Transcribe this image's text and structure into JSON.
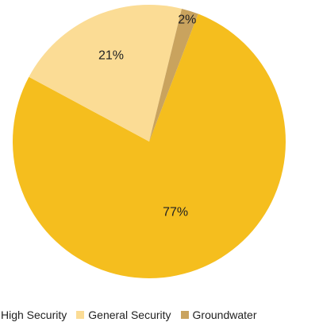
{
  "chart_data": {
    "type": "pie",
    "title": "",
    "start_angle_deg": 21,
    "slices": [
      {
        "label": "High Security",
        "value": 77,
        "display": "77%",
        "color": "#F5BE1E"
      },
      {
        "label": "General Security",
        "value": 21,
        "display": "21%",
        "color": "#FBDC95"
      },
      {
        "label": "Groundwater",
        "value": 2,
        "display": "2%",
        "color": "#C9A35E"
      }
    ],
    "legend": {
      "position": "bottom",
      "items": [
        "High Security",
        "General Security",
        "Groundwater"
      ]
    }
  }
}
